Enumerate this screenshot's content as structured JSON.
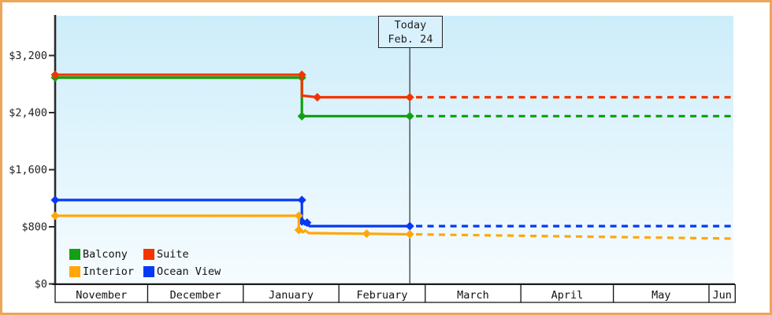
{
  "page": {
    "frame_color": "#eda558",
    "background": "#ffffff"
  },
  "plot": {
    "bg_top": "#cdedfa",
    "bg_bottom": "#f6fcff",
    "axis_color": "#2b2b2b",
    "text_color": "#222222",
    "today_line_color": "#3a3a3a"
  },
  "today_marker": {
    "title": "Today",
    "date": "Feb. 24",
    "day": 115
  },
  "y_axis": {
    "labels": [
      {
        "text": "$0",
        "value": 0
      },
      {
        "text": "$800",
        "value": 800
      },
      {
        "text": "$1,600",
        "value": 1600
      },
      {
        "text": "$2,400",
        "value": 2400
      },
      {
        "text": "$3,200",
        "value": 3200
      }
    ]
  },
  "x_axis": {
    "months": [
      {
        "label": "November",
        "start_day": 0
      },
      {
        "label": "December",
        "start_day": 30
      },
      {
        "label": "January",
        "start_day": 61
      },
      {
        "label": "February",
        "start_day": 92
      },
      {
        "label": "March",
        "start_day": 120
      },
      {
        "label": "April",
        "start_day": 151
      },
      {
        "label": "May",
        "start_day": 181
      },
      {
        "label": "Jun",
        "start_day": 212
      }
    ],
    "end_day": 220.5
  },
  "legend": {
    "items": [
      {
        "label": "Balcony",
        "color": "#12a112"
      },
      {
        "label": "Suite",
        "color": "#f43300"
      },
      {
        "label": "Interior",
        "color": "#ffa70a"
      },
      {
        "label": "Ocean View",
        "color": "#0539f5"
      }
    ]
  },
  "chart_data": {
    "type": "line",
    "title": "",
    "x_unit": "days since Nov 1",
    "xlim": [
      0,
      220.5
    ],
    "ylim": [
      0,
      3760
    ],
    "y_ticks": [
      0,
      800,
      1600,
      2400,
      3200
    ],
    "grid": false,
    "legend_position": "bottom-left-inside",
    "today_day": 115,
    "today_label": "Today Feb. 24",
    "series": [
      {
        "name": "Balcony",
        "color": "#12a112",
        "points": [
          [
            0,
            2890
          ],
          [
            80,
            2890
          ],
          [
            80,
            2350
          ],
          [
            115,
            2350
          ]
        ],
        "projection": [
          [
            117,
            2350
          ],
          [
            220,
            2350
          ]
        ],
        "markers": [
          [
            0,
            2890
          ],
          [
            80,
            2890
          ],
          [
            80,
            2350
          ],
          [
            115,
            2350
          ]
        ]
      },
      {
        "name": "Suite",
        "color": "#f43300",
        "points": [
          [
            0,
            2930
          ],
          [
            80,
            2930
          ],
          [
            80,
            2640
          ],
          [
            85,
            2615
          ],
          [
            115,
            2615
          ]
        ],
        "projection": [
          [
            117,
            2615
          ],
          [
            220,
            2615
          ]
        ],
        "markers": [
          [
            0,
            2930
          ],
          [
            80,
            2930
          ],
          [
            85,
            2615
          ],
          [
            115,
            2615
          ]
        ]
      },
      {
        "name": "Ocean View",
        "color": "#0539f5",
        "points": [
          [
            0,
            1175
          ],
          [
            80,
            1175
          ],
          [
            80,
            875
          ],
          [
            81,
            835
          ],
          [
            81.7,
            858
          ],
          [
            82.5,
            810
          ],
          [
            115,
            810
          ]
        ],
        "projection": [
          [
            117,
            810
          ],
          [
            220,
            810
          ]
        ],
        "markers": [
          [
            0,
            1175
          ],
          [
            80,
            1175
          ],
          [
            80,
            875
          ],
          [
            81.7,
            858
          ],
          [
            115,
            810
          ]
        ]
      },
      {
        "name": "Interior",
        "color": "#ffa70a",
        "points": [
          [
            0,
            955
          ],
          [
            79,
            955
          ],
          [
            79,
            755
          ],
          [
            80.3,
            725
          ],
          [
            81,
            748
          ],
          [
            82.3,
            712
          ],
          [
            101,
            703
          ],
          [
            115,
            695
          ]
        ],
        "projection": [
          [
            117,
            694
          ],
          [
            220,
            634
          ]
        ],
        "markers": [
          [
            0,
            955
          ],
          [
            79,
            955
          ],
          [
            79,
            755
          ],
          [
            101,
            703
          ],
          [
            115,
            695
          ]
        ]
      }
    ]
  }
}
